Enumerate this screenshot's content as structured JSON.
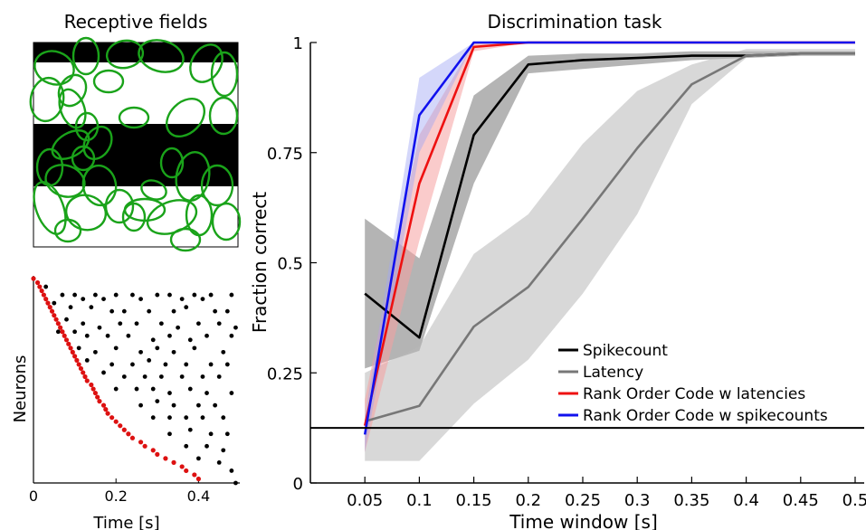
{
  "chart_data": [
    {
      "type": "image",
      "title": "Receptive fields",
      "stripes": [
        "black",
        "white",
        "black",
        "white"
      ],
      "colors": {
        "stripe": "#000000",
        "field": "#1aa31a"
      }
    },
    {
      "type": "scatter",
      "title": "",
      "xlabel": "Time [s]",
      "ylabel": "Neurons",
      "xlim": [
        0,
        0.5
      ],
      "xticks": [
        "0",
        "0.2",
        "0.4"
      ],
      "ylim": [
        0,
        50
      ],
      "colors": {
        "spikes": "#000000",
        "first_spikes": "#dd1111"
      },
      "series": [
        {
          "points": [
            [
              0.03,
              48
            ],
            [
              0.07,
              46
            ],
            [
              0.1,
              46
            ],
            [
              0.12,
              45
            ],
            [
              0.15,
              46
            ],
            [
              0.17,
              45
            ],
            [
              0.2,
              46
            ],
            [
              0.24,
              46
            ],
            [
              0.26,
              45
            ],
            [
              0.3,
              46
            ],
            [
              0.33,
              46
            ],
            [
              0.36,
              45
            ],
            [
              0.39,
              46
            ],
            [
              0.41,
              45
            ],
            [
              0.43,
              46
            ],
            [
              0.48,
              46
            ],
            [
              0.05,
              44
            ],
            [
              0.09,
              43
            ],
            [
              0.14,
              43
            ],
            [
              0.19,
              42
            ],
            [
              0.22,
              42
            ],
            [
              0.28,
              42
            ],
            [
              0.34,
              42
            ],
            [
              0.37,
              43
            ],
            [
              0.44,
              42
            ],
            [
              0.47,
              42
            ],
            [
              0.08,
              40
            ],
            [
              0.12,
              39
            ],
            [
              0.16,
              38
            ],
            [
              0.21,
              39
            ],
            [
              0.25,
              39
            ],
            [
              0.31,
              39
            ],
            [
              0.35,
              38
            ],
            [
              0.4,
              39
            ],
            [
              0.45,
              39
            ],
            [
              0.49,
              38
            ],
            [
              0.06,
              37
            ],
            [
              0.1,
              37
            ],
            [
              0.13,
              36
            ],
            [
              0.18,
              36
            ],
            [
              0.23,
              36
            ],
            [
              0.29,
              35
            ],
            [
              0.33,
              36
            ],
            [
              0.38,
              35
            ],
            [
              0.42,
              36
            ],
            [
              0.48,
              36
            ],
            [
              0.11,
              33
            ],
            [
              0.15,
              32
            ],
            [
              0.2,
              33
            ],
            [
              0.26,
              32
            ],
            [
              0.3,
              33
            ],
            [
              0.34,
              32
            ],
            [
              0.39,
              33
            ],
            [
              0.46,
              32
            ],
            [
              0.13,
              30
            ],
            [
              0.19,
              29
            ],
            [
              0.24,
              29
            ],
            [
              0.28,
              30
            ],
            [
              0.32,
              29
            ],
            [
              0.37,
              29
            ],
            [
              0.43,
              29
            ],
            [
              0.47,
              29
            ],
            [
              0.17,
              27
            ],
            [
              0.22,
              26
            ],
            [
              0.27,
              26
            ],
            [
              0.31,
              26
            ],
            [
              0.36,
              26
            ],
            [
              0.41,
              26
            ],
            [
              0.45,
              26
            ],
            [
              0.2,
              23
            ],
            [
              0.25,
              23
            ],
            [
              0.29,
              23
            ],
            [
              0.33,
              22
            ],
            [
              0.38,
              23
            ],
            [
              0.42,
              22
            ],
            [
              0.48,
              22
            ],
            [
              0.26,
              19
            ],
            [
              0.3,
              20
            ],
            [
              0.34,
              19
            ],
            [
              0.4,
              19
            ],
            [
              0.44,
              19
            ],
            [
              0.29,
              16
            ],
            [
              0.33,
              16
            ],
            [
              0.37,
              16
            ],
            [
              0.41,
              16
            ],
            [
              0.46,
              16
            ],
            [
              0.33,
              12
            ],
            [
              0.38,
              13
            ],
            [
              0.43,
              12
            ],
            [
              0.47,
              12
            ],
            [
              0.37,
              9
            ],
            [
              0.42,
              9
            ],
            [
              0.46,
              8
            ],
            [
              0.4,
              6
            ],
            [
              0.45,
              5
            ],
            [
              0.48,
              3
            ],
            [
              0.49,
              0
            ]
          ]
        },
        {
          "points": [
            [
              0.0,
              50
            ],
            [
              0.01,
              49
            ],
            [
              0.015,
              48
            ],
            [
              0.02,
              47
            ],
            [
              0.025,
              46
            ],
            [
              0.03,
              45
            ],
            [
              0.035,
              44
            ],
            [
              0.04,
              43
            ],
            [
              0.045,
              42
            ],
            [
              0.05,
              41
            ],
            [
              0.055,
              40
            ],
            [
              0.06,
              39
            ],
            [
              0.065,
              38
            ],
            [
              0.07,
              37
            ],
            [
              0.075,
              36
            ],
            [
              0.08,
              35
            ],
            [
              0.085,
              34
            ],
            [
              0.09,
              33
            ],
            [
              0.095,
              32
            ],
            [
              0.1,
              31
            ],
            [
              0.105,
              30
            ],
            [
              0.11,
              29
            ],
            [
              0.115,
              28
            ],
            [
              0.12,
              27
            ],
            [
              0.125,
              26
            ],
            [
              0.13,
              25
            ],
            [
              0.14,
              24
            ],
            [
              0.145,
              23
            ],
            [
              0.15,
              22
            ],
            [
              0.155,
              21
            ],
            [
              0.16,
              20
            ],
            [
              0.17,
              19
            ],
            [
              0.175,
              18
            ],
            [
              0.18,
              17
            ],
            [
              0.19,
              16
            ],
            [
              0.2,
              15
            ],
            [
              0.21,
              14
            ],
            [
              0.22,
              13
            ],
            [
              0.23,
              12
            ],
            [
              0.24,
              11
            ],
            [
              0.26,
              10
            ],
            [
              0.27,
              9
            ],
            [
              0.29,
              8
            ],
            [
              0.3,
              7
            ],
            [
              0.32,
              6
            ],
            [
              0.34,
              5
            ],
            [
              0.36,
              4
            ],
            [
              0.37,
              3
            ],
            [
              0.39,
              2
            ],
            [
              0.4,
              1
            ]
          ]
        }
      ]
    },
    {
      "type": "line",
      "title": "Discrimination task",
      "xlabel": "Time window [s]",
      "ylabel": "Fraction correct",
      "xlim": [
        0,
        0.5
      ],
      "ylim": [
        0,
        1
      ],
      "x": [
        0.05,
        0.1,
        0.15,
        0.2,
        0.25,
        0.3,
        0.35,
        0.4,
        0.45,
        0.5
      ],
      "xticks": [
        "0.05",
        "0.1",
        "0.15",
        "0.2",
        "0.25",
        "0.3",
        "0.35",
        "0.4",
        "0.45",
        "0.5"
      ],
      "yticks": [
        {
          "v": 0,
          "t": "0"
        },
        {
          "v": 0.25,
          "t": "0.25"
        },
        {
          "v": 0.5,
          "t": "0.5"
        },
        {
          "v": 0.75,
          "t": "0.75"
        },
        {
          "v": 1,
          "t": "1"
        }
      ],
      "chance_level": 0.125,
      "legend_position": "bottom-right",
      "grid": false,
      "series": [
        {
          "name": "Spikecount",
          "color": "#000000",
          "band_color": "#777777",
          "band_opacity": 0.55,
          "values": [
            0.43,
            0.33,
            0.79,
            0.95,
            0.96,
            0.965,
            0.97,
            0.97,
            0.975,
            0.975
          ],
          "lower": [
            0.26,
            0.3,
            0.68,
            0.93,
            0.94,
            0.95,
            0.96,
            0.965,
            0.97,
            0.97
          ],
          "upper": [
            0.6,
            0.51,
            0.88,
            0.97,
            0.975,
            0.975,
            0.98,
            0.98,
            0.98,
            0.98
          ]
        },
        {
          "name": "Latency",
          "color": "#777777",
          "band_color": "#b8b8b8",
          "band_opacity": 0.55,
          "values": [
            0.14,
            0.175,
            0.355,
            0.445,
            0.6,
            0.76,
            0.905,
            0.97,
            0.975,
            0.975
          ],
          "lower": [
            0.05,
            0.05,
            0.18,
            0.28,
            0.43,
            0.61,
            0.86,
            0.965,
            0.97,
            0.97
          ],
          "upper": [
            0.25,
            0.31,
            0.52,
            0.61,
            0.77,
            0.89,
            0.95,
            0.985,
            0.985,
            0.985
          ]
        },
        {
          "name": "Rank Order Code w latencies",
          "color": "#ee1111",
          "band_color": "#f5a0a0",
          "band_opacity": 0.55,
          "values": [
            0.13,
            0.68,
            0.99,
            1.0,
            1.0,
            1.0,
            1.0,
            1.0,
            1.0,
            1.0
          ],
          "lower": [
            0.07,
            0.55,
            0.98,
            1.0,
            1.0,
            1.0,
            1.0,
            1.0,
            1.0,
            1.0
          ],
          "upper": [
            0.19,
            0.79,
            1.0,
            1.0,
            1.0,
            1.0,
            1.0,
            1.0,
            1.0,
            1.0
          ]
        },
        {
          "name": "Rank Order Code w spikecounts",
          "color": "#1111ee",
          "band_color": "#9fa6f5",
          "band_opacity": 0.45,
          "values": [
            0.11,
            0.835,
            1.0,
            1.0,
            1.0,
            1.0,
            1.0,
            1.0,
            1.0,
            1.0
          ],
          "lower": [
            0.07,
            0.75,
            1.0,
            1.0,
            1.0,
            1.0,
            1.0,
            1.0,
            1.0,
            1.0
          ],
          "upper": [
            0.15,
            0.92,
            1.0,
            1.0,
            1.0,
            1.0,
            1.0,
            1.0,
            1.0,
            1.0
          ]
        }
      ]
    }
  ]
}
